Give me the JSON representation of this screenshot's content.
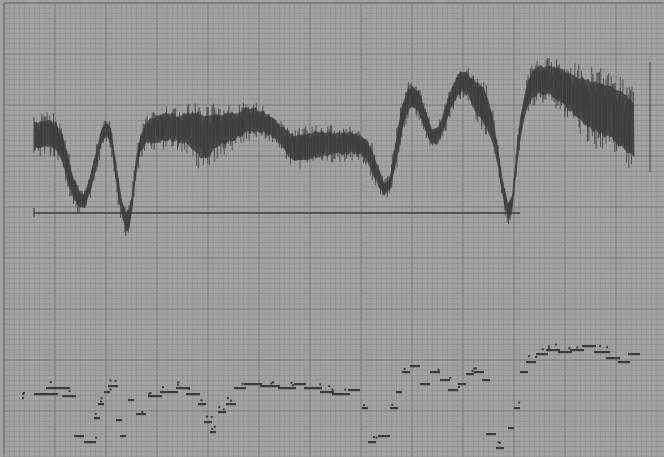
{
  "image": {
    "kind": "grayscale scan of a paper strip-chart recording",
    "paper_color": "#a3a3a3",
    "minor_grid_color": "#8c8c8c",
    "major_grid_color": "#7a7a7a",
    "ink_color": "#3a3a3a",
    "text_labels": []
  }
}
